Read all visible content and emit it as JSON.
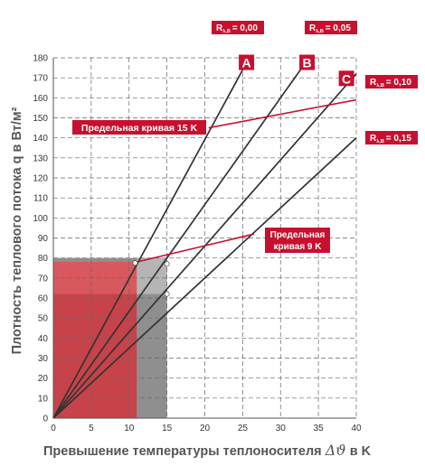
{
  "chart_data": {
    "type": "line",
    "xlabel": "Превышение температуры теплоносителя",
    "xlabel_symbol": "Δϑ",
    "xlabel_unit": "в K",
    "ylabel": "Плотность теплового потока q в Вт/м²",
    "xlim": [
      0,
      40
    ],
    "ylim": [
      0,
      180
    ],
    "xticks": [
      0,
      5,
      10,
      15,
      20,
      25,
      30,
      35,
      40
    ],
    "yticks": [
      0,
      10,
      20,
      30,
      40,
      50,
      60,
      70,
      80,
      90,
      100,
      110,
      120,
      130,
      140,
      150,
      160,
      170,
      180
    ],
    "grid": true,
    "colors": {
      "accent": "#c8102e",
      "line": "#333333",
      "grid": "#666666",
      "fill_red": "#c8424a",
      "fill_gray": "#8f8f8f"
    },
    "regions": [
      {
        "x": [
          0,
          15
        ],
        "y": [
          0,
          80
        ],
        "color": "#8f8f8f",
        "name": "gray-region"
      },
      {
        "x": [
          0,
          11
        ],
        "y": [
          0,
          78
        ],
        "color": "#c8424a",
        "name": "red-region"
      }
    ],
    "series": [
      {
        "name": "A",
        "x": [
          0,
          25
        ],
        "y": [
          0,
          174
        ]
      },
      {
        "name": "B",
        "x": [
          0,
          33
        ],
        "y": [
          0,
          176
        ]
      },
      {
        "name": "C",
        "x": [
          0,
          40
        ],
        "y": [
          0,
          172
        ]
      },
      {
        "name": "",
        "x": [
          0,
          40
        ],
        "y": [
          0,
          140
        ]
      }
    ],
    "limit_curves": [
      {
        "label": "Предельная кривая 15 K",
        "x": [
          20.5,
          40
        ],
        "y": [
          145,
          159
        ]
      },
      {
        "label_lines": [
          "Предельная",
          "кривая 9 K"
        ],
        "x": [
          11,
          26.5
        ],
        "y": [
          78,
          92
        ]
      }
    ],
    "points": [
      {
        "x": 10.8,
        "y": 77.5
      },
      {
        "x": 15,
        "y": 77
      },
      {
        "x": 15,
        "y": 62
      }
    ],
    "badges": [
      {
        "text": "R",
        "sub": "λ,B",
        "value": "= 0,00"
      },
      {
        "text": "R",
        "sub": "λ,B",
        "value": "= 0,05"
      },
      {
        "text": "R",
        "sub": "λ,B",
        "value": "= 0,10"
      },
      {
        "text": "R",
        "sub": "λ,B",
        "value": "= 0,15"
      }
    ]
  }
}
